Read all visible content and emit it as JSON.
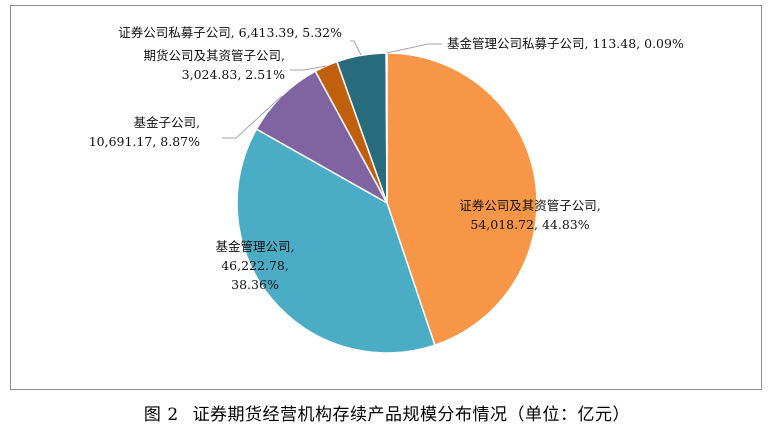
{
  "chart_data": {
    "type": "pie",
    "slices": [
      {
        "label": "证券公司及其资管子公司",
        "value": 54018.72,
        "value_text": "54,018.72",
        "pct_text": "44.83%",
        "color": "#F79646"
      },
      {
        "label": "基金管理公司",
        "value": 46222.78,
        "value_text": "46,222.78",
        "pct_text": "38.36%",
        "color": "#4BACC6"
      },
      {
        "label": "基金子公司",
        "value": 10691.17,
        "value_text": "10,691.17",
        "pct_text": "8.87%",
        "color": "#8064A2"
      },
      {
        "label": "期货公司及其资管子公司",
        "value": 3024.83,
        "value_text": "3,024.83",
        "pct_text": "2.51%",
        "color": "#C0600C"
      },
      {
        "label": "证券公司私募子公司",
        "value": 6413.39,
        "value_text": "6,413.39",
        "pct_text": "5.32%",
        "color": "#276B7D"
      },
      {
        "label": "基金管理公司私募子公司",
        "value": 113.48,
        "value_text": "113.48",
        "pct_text": "0.09%",
        "color": "#4F81BD"
      }
    ]
  },
  "caption": {
    "figure_no": "图 2",
    "title": "证券期货经营机构存续产品规模分布情况（单位：亿元）"
  }
}
